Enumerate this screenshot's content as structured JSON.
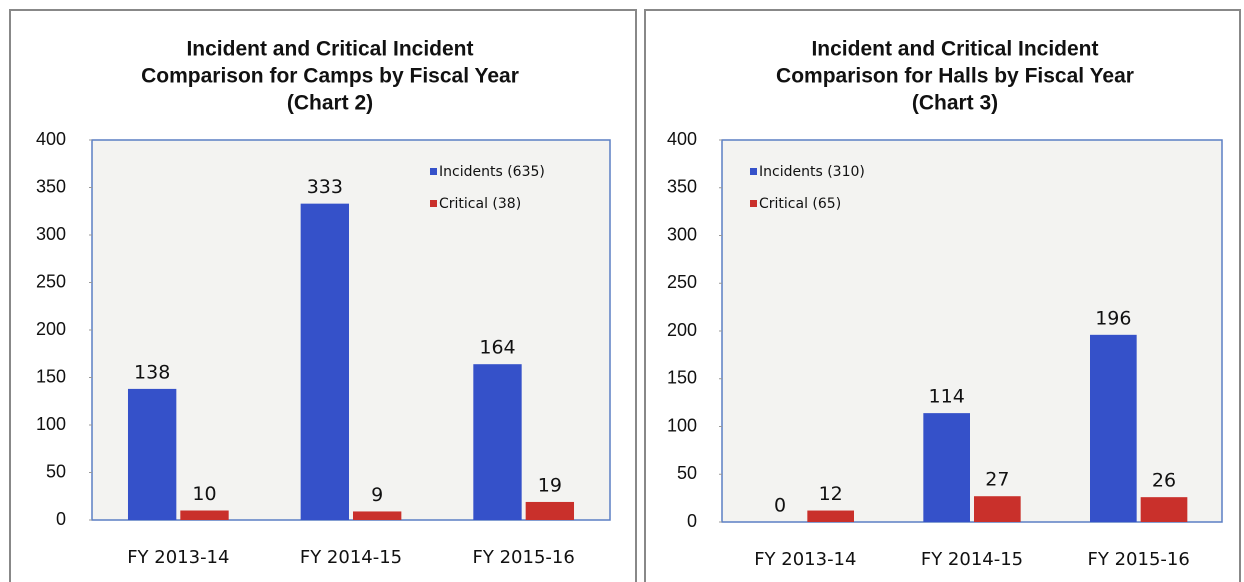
{
  "chart_data": [
    {
      "type": "bar",
      "title": [
        "Incident and Critical Incident",
        "Comparison for Camps by Fiscal Year",
        "(Chart 2)"
      ],
      "categories": [
        "FY 2013-14",
        "FY 2014-15",
        "FY 2015-16"
      ],
      "series": [
        {
          "name": "Incidents (635)",
          "color": "#3551c9",
          "values": [
            138,
            333,
            164
          ]
        },
        {
          "name": "Critical (38)",
          "color": "#c9302b",
          "values": [
            10,
            9,
            19
          ]
        }
      ],
      "ylim": [
        0,
        400
      ],
      "yticks": [
        0,
        50,
        100,
        150,
        200,
        250,
        300,
        350,
        400
      ],
      "legend": "upper right",
      "data_labels": true
    },
    {
      "type": "bar",
      "title": [
        "Incident and Critical Incident",
        "Comparison for Halls by Fiscal Year",
        "(Chart 3)"
      ],
      "categories": [
        "FY 2013-14",
        "FY 2014-15",
        "FY 2015-16"
      ],
      "series": [
        {
          "name": "Incidents (310)",
          "color": "#3551c9",
          "values": [
            0,
            114,
            196
          ]
        },
        {
          "name": "Critical (65)",
          "color": "#c9302b",
          "values": [
            12,
            27,
            26
          ]
        }
      ],
      "ylim": [
        0,
        400
      ],
      "yticks": [
        0,
        50,
        100,
        150,
        200,
        250,
        300,
        350,
        400
      ],
      "legend": "upper left",
      "data_labels": true
    }
  ]
}
